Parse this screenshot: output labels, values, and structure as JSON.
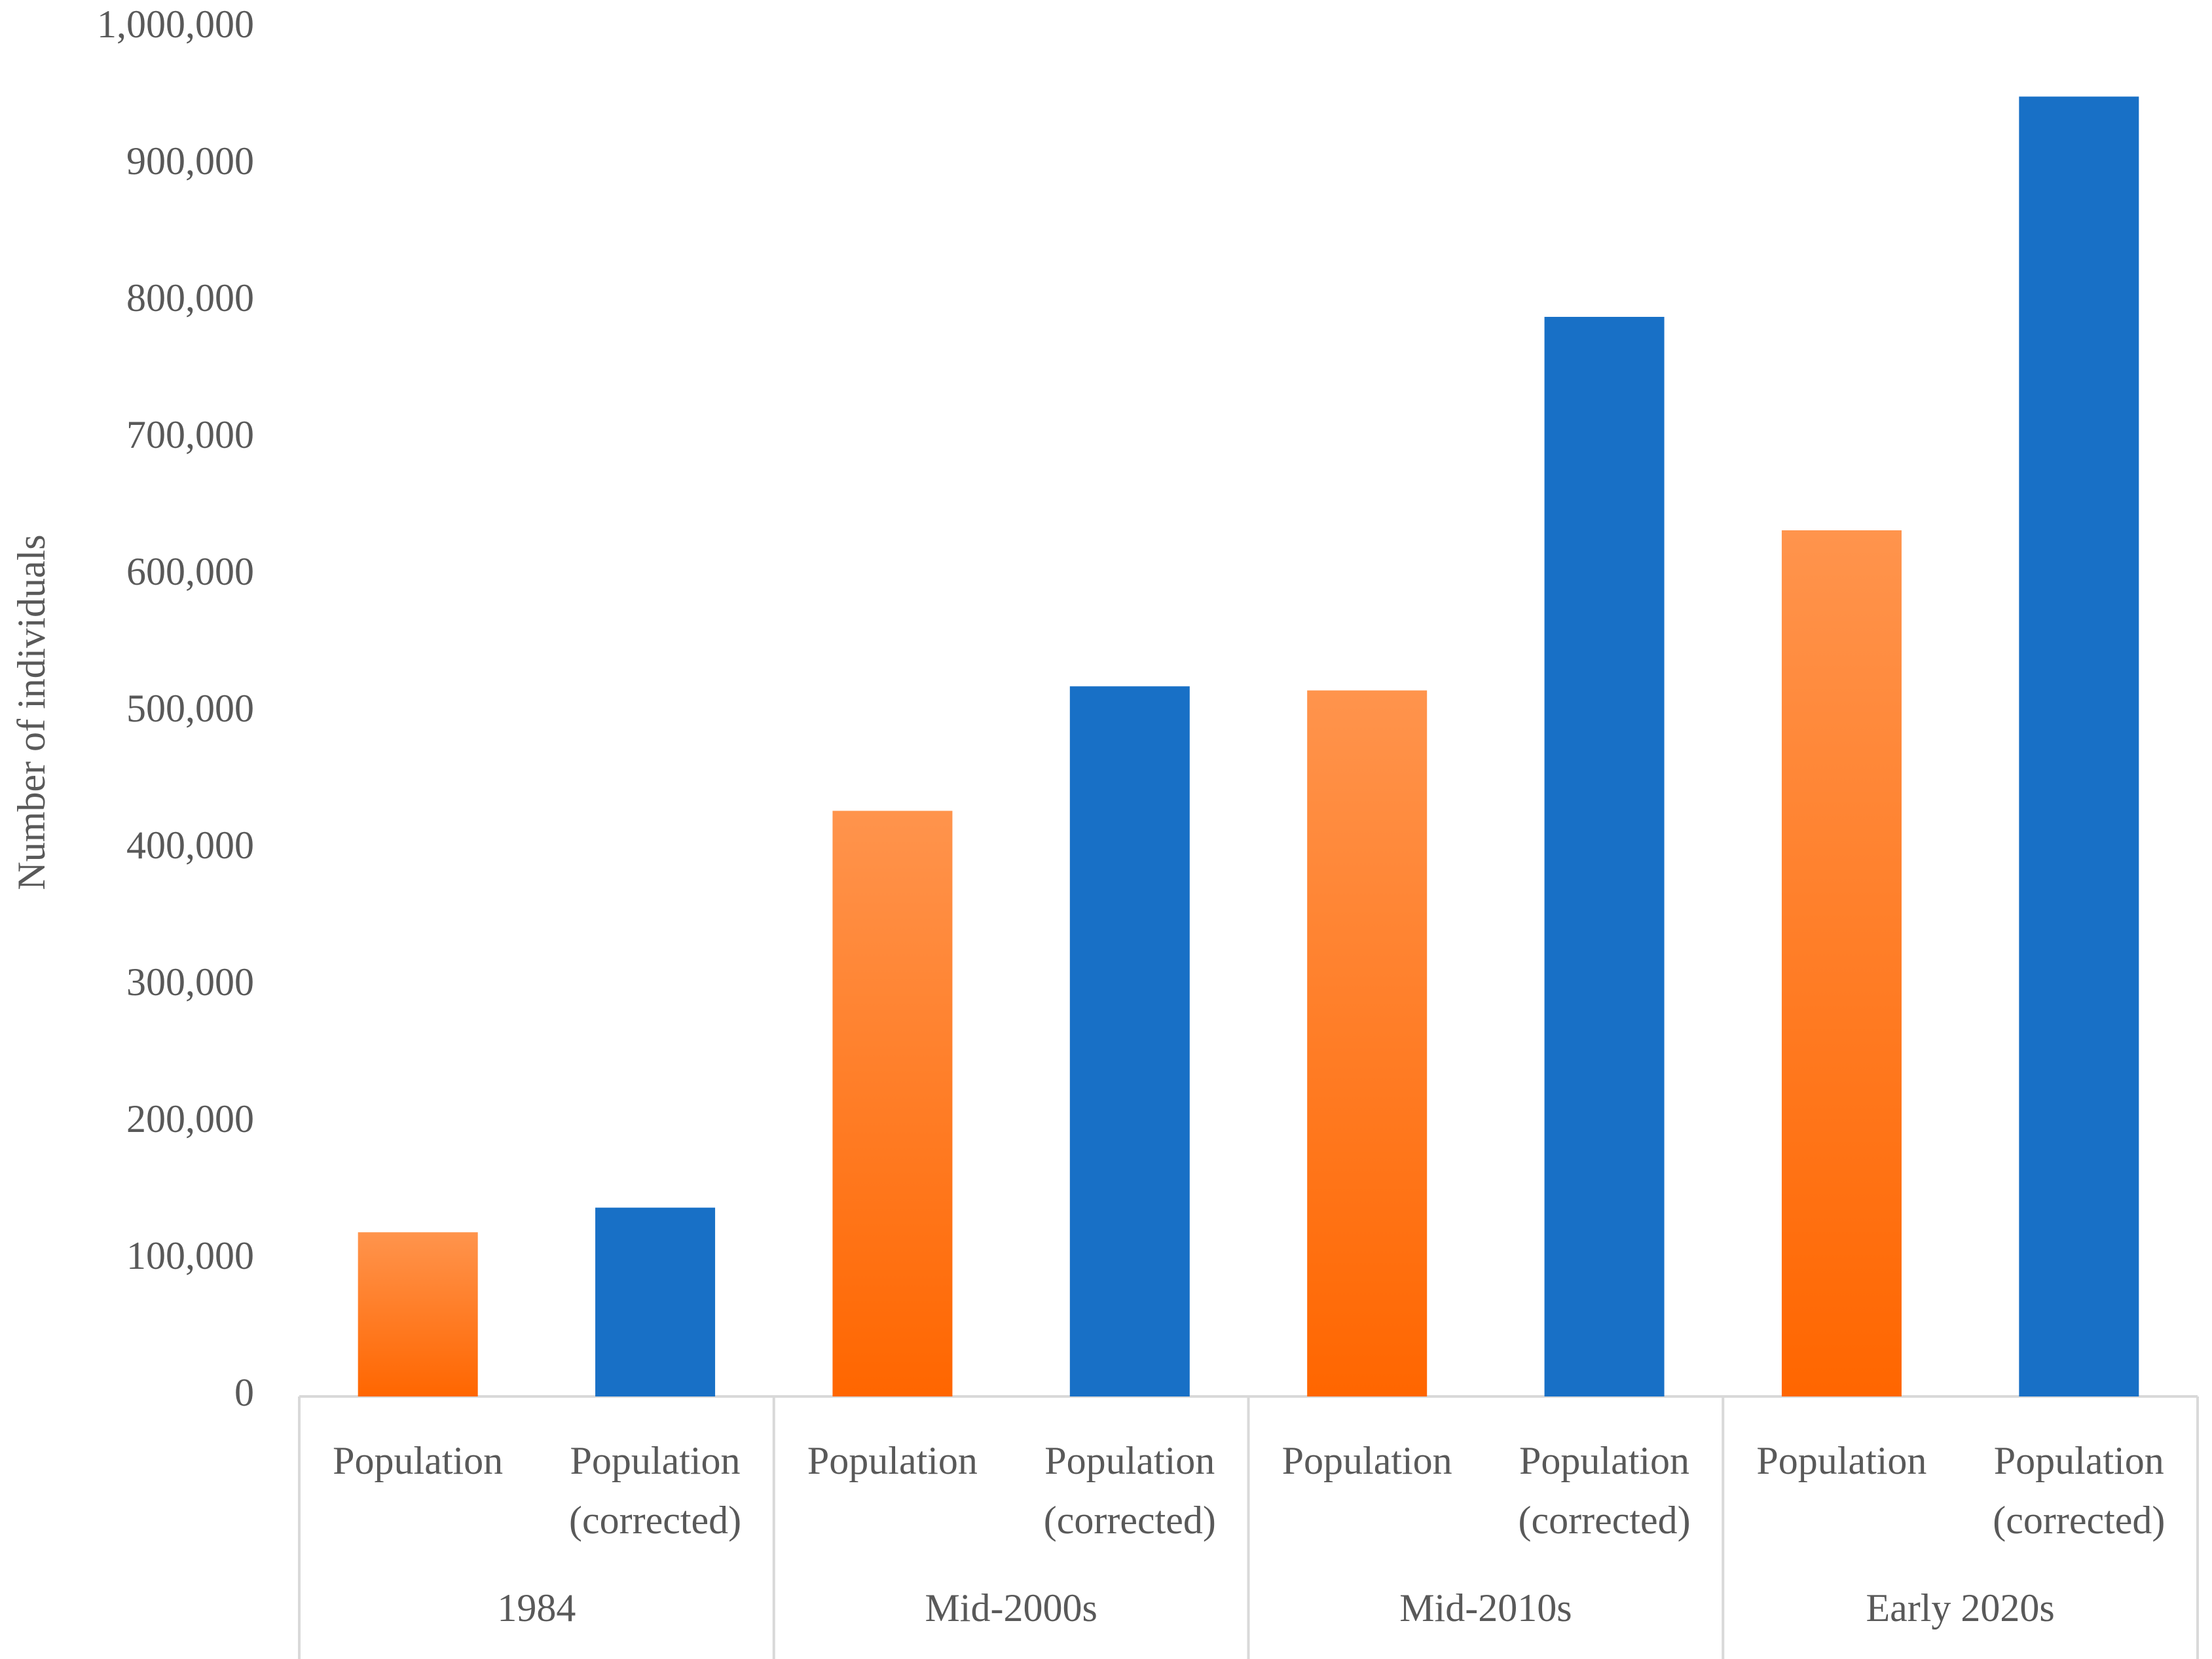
{
  "chart_data": {
    "type": "bar",
    "y_label": "Number of individuals",
    "categories": [
      "1984",
      "Mid-2000s",
      "Mid-2010s",
      "Early 2020s"
    ],
    "series": [
      {
        "name": "Population",
        "color": "#ff6600",
        "gradient": true,
        "values": [
          120000,
          428000,
          516000,
          633000
        ]
      },
      {
        "name": "Population (corrected)",
        "color": "#1870c6",
        "gradient": false,
        "values": [
          138000,
          519000,
          789000,
          950000
        ]
      }
    ],
    "ylim": [
      0,
      1000000
    ],
    "yticks": [
      0,
      {
        "value": 100000,
        "label": "100,000"
      },
      {
        "value": 200000,
        "label": "200,000"
      },
      {
        "value": 300000,
        "label": "300,000"
      },
      {
        "value": 400000,
        "label": "400,000"
      },
      {
        "value": 500000,
        "label": "500,000"
      },
      {
        "value": 600000,
        "label": "600,000"
      },
      {
        "value": 700000,
        "label": "700,000"
      },
      {
        "value": 800000,
        "label": "800,000"
      },
      {
        "value": 900000,
        "label": "900,000"
      },
      {
        "value": 1000000,
        "label": "1,000,000"
      }
    ],
    "grid": false
  }
}
